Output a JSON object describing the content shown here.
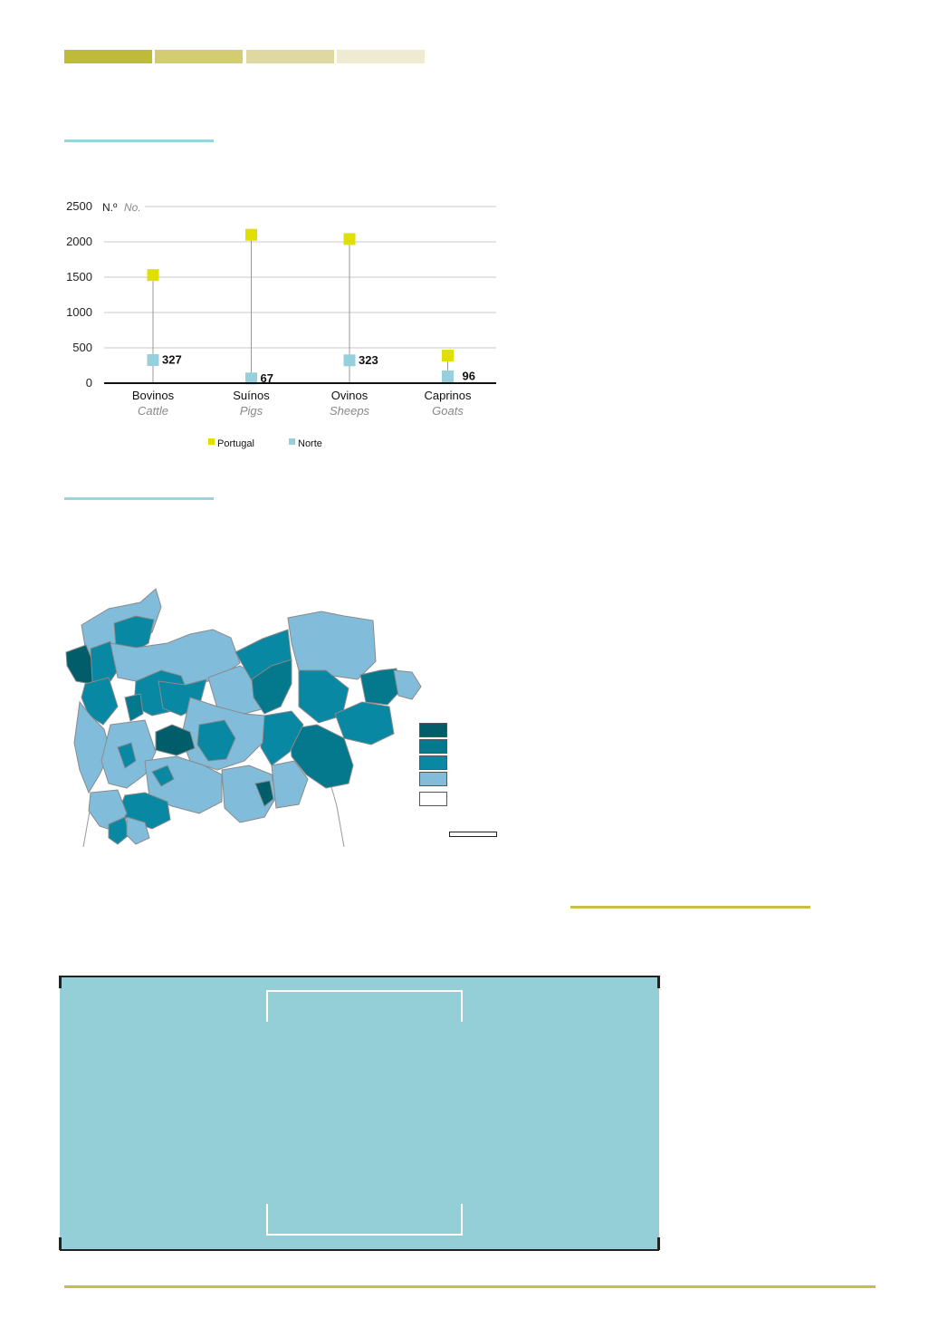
{
  "header": {
    "bands": [
      {
        "color": "#bfbb3a"
      },
      {
        "color": "#d3cc73"
      },
      {
        "color": "#dfd9a1"
      },
      {
        "color": "#efead2"
      }
    ]
  },
  "colors": {
    "section_rule": "#9bd3dd",
    "gold_rule": "#c7be4d",
    "portugal": "#dfe000",
    "norte": "#95d0dc",
    "panel": "#94cfd8"
  },
  "chart_data": {
    "type": "scatter",
    "subtype": "dot-plot",
    "unit_label": "N.º",
    "unit_label_en": "No.",
    "ylim": [
      0,
      2500
    ],
    "yticks": [
      0,
      500,
      1000,
      1500,
      2000,
      2500
    ],
    "grid": true,
    "categories": [
      {
        "pt": "Bovinos",
        "en": "Cattle"
      },
      {
        "pt": "Suínos",
        "en": "Pigs"
      },
      {
        "pt": "Ovinos",
        "en": "Sheeps"
      },
      {
        "pt": "Caprinos",
        "en": "Goats"
      }
    ],
    "series": [
      {
        "name": "Portugal",
        "color": "#dfe000",
        "values": [
          1530,
          2100,
          2040,
          390
        ]
      },
      {
        "name": "Norte",
        "color": "#95d0dc",
        "values": [
          327,
          67,
          323,
          96
        ]
      }
    ],
    "data_labels": [
      "327",
      "67",
      "323",
      "96"
    ],
    "legend_position": "bottom"
  },
  "map": {
    "legend_classes": [
      {
        "color": "#025d6b"
      },
      {
        "color": "#04788d"
      },
      {
        "color": "#0888a2"
      },
      {
        "color": "#82bcdb"
      },
      {
        "color": "#ffffff"
      }
    ]
  }
}
